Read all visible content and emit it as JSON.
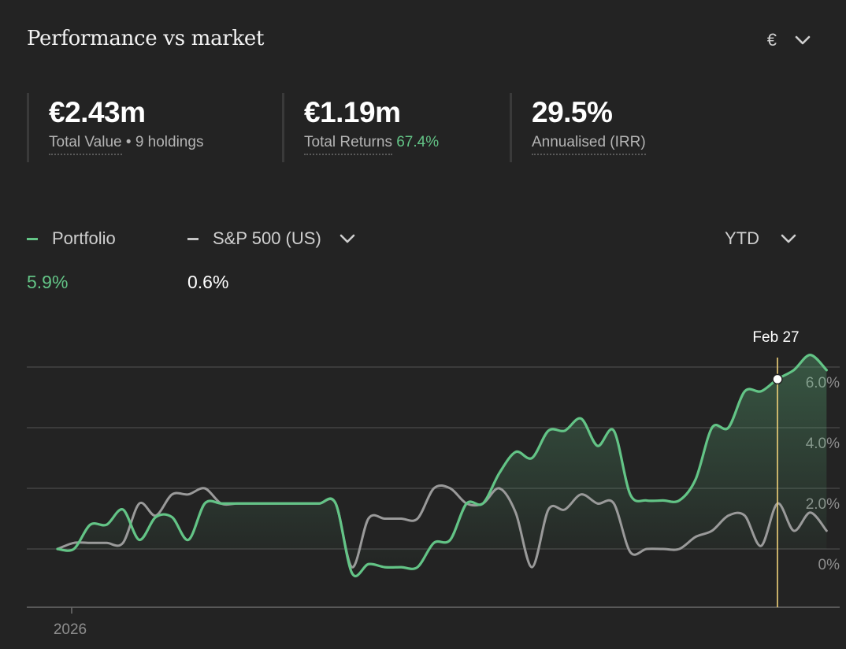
{
  "header": {
    "title": "Performance vs market",
    "currency_symbol": "€"
  },
  "stats": [
    {
      "value": "€2.43m",
      "label": "Total Value",
      "extra": "• 9 holdings",
      "extra_color": ""
    },
    {
      "value": "€1.19m",
      "label": "Total Returns",
      "extra": "67.4%",
      "extra_color": "green"
    },
    {
      "value": "29.5%",
      "label": "Annualised (IRR)",
      "extra": "",
      "extra_color": ""
    }
  ],
  "legend": {
    "portfolio": {
      "label": "Portfolio",
      "value": "5.9%",
      "color": "#63c486"
    },
    "benchmark": {
      "label": "S&P 500 (US)",
      "value": "0.6%",
      "color": "#c4c4c4"
    }
  },
  "period": "YTD",
  "colors": {
    "portfolio": "#63c486",
    "benchmark": "#9a9a9a",
    "marker": "#f0d27a",
    "grid": "#4a4a4a",
    "axis_text": "#8e8e8e"
  },
  "chart_data": {
    "type": "line",
    "y_ticks": [
      "6.0%",
      "4.0%",
      "2.0%",
      "0%"
    ],
    "y_tick_values": [
      6,
      4,
      2,
      0
    ],
    "x_tick_labels": [
      "2026"
    ],
    "ylim": [
      -1.9,
      7.9
    ],
    "marker_label": "Feb 27",
    "marker_point": 44,
    "series": [
      {
        "name": "Portfolio",
        "values": [
          0,
          0,
          0.8,
          0.8,
          1.3,
          0.3,
          1.05,
          1.05,
          0.3,
          1.5,
          1.5,
          1.5,
          1.5,
          1.5,
          1.5,
          1.5,
          1.5,
          1.5,
          -0.8,
          -0.5,
          -0.6,
          -0.6,
          -0.6,
          0.2,
          0.3,
          1.5,
          1.5,
          2.5,
          3.2,
          3.0,
          3.9,
          3.9,
          4.3,
          3.4,
          3.9,
          1.8,
          1.6,
          1.6,
          1.6,
          2.3,
          4.0,
          4.0,
          5.2,
          5.2,
          5.6,
          5.9,
          6.4,
          5.9
        ]
      },
      {
        "name": "S&P 500 (US)",
        "values": [
          0,
          0.2,
          0.2,
          0.2,
          0.2,
          1.5,
          1.1,
          1.8,
          1.8,
          2.0,
          1.5,
          1.5,
          1.5,
          1.5,
          1.5,
          1.5,
          1.5,
          1.5,
          -0.6,
          1.0,
          1.0,
          1.0,
          1.0,
          2.0,
          2.0,
          1.5,
          1.5,
          2.0,
          1.2,
          -0.6,
          1.3,
          1.3,
          1.8,
          1.5,
          1.5,
          -0.1,
          0,
          0,
          0,
          0.4,
          0.6,
          1.1,
          1.1,
          0.1,
          1.5,
          0.6,
          1.2,
          0.6
        ]
      }
    ]
  }
}
